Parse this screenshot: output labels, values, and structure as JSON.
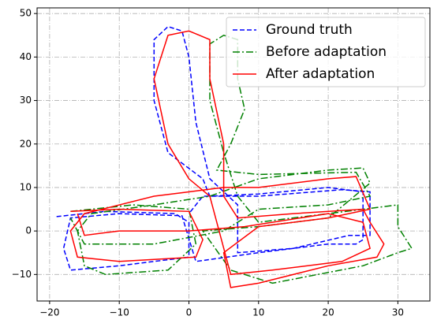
{
  "chart_data": {
    "type": "line",
    "xlim": [
      -21.8,
      34.6
    ],
    "ylim": [
      -16.1,
      51.3
    ],
    "xticks": [
      {
        "value": -20,
        "label": "−20"
      },
      {
        "value": -10,
        "label": "−10"
      },
      0,
      10,
      20,
      30
    ],
    "yticks": [
      {
        "value": -10,
        "label": "−10"
      },
      0,
      10,
      20,
      30,
      40,
      50
    ],
    "grid": true,
    "legend": "upper right",
    "series": [
      {
        "name": "Ground truth",
        "color": "#0000ff",
        "linestyle": "dashed",
        "x": [
          -19,
          -12,
          -2,
          0,
          0,
          -10,
          -17,
          -18,
          -17,
          -10,
          -1,
          1,
          10,
          20,
          24,
          25,
          25,
          20,
          10,
          3,
          2,
          -3,
          -5,
          -5,
          -3,
          -1,
          0,
          1,
          3,
          7,
          7,
          15,
          23,
          26,
          26,
          22,
          10,
          2,
          0
        ],
        "values": [
          3.3,
          4.5,
          4,
          2,
          -6,
          -8,
          -9,
          -4,
          3,
          4,
          3.5,
          -7,
          -5,
          -3,
          -3,
          -2,
          9,
          10,
          8.5,
          8,
          12,
          18,
          30,
          44,
          47,
          46,
          40,
          25,
          12,
          6,
          -5,
          -4,
          -1,
          -1,
          9,
          9.5,
          8,
          8,
          4
        ]
      },
      {
        "name": "Before adaptation",
        "color": "#008000",
        "linestyle": "dashdot",
        "x": [
          -17,
          -8,
          0,
          1,
          -3,
          -12,
          -15,
          -16,
          -14,
          -5,
          3,
          10,
          20,
          25,
          26,
          20,
          10,
          2,
          6,
          12,
          25,
          30,
          32,
          30,
          30,
          20,
          10,
          7,
          5,
          3,
          3,
          5,
          7,
          7,
          8,
          6,
          4,
          10,
          24,
          26,
          20,
          10,
          5,
          -5,
          -15,
          -17
        ],
        "values": [
          4.5,
          6,
          5,
          -3,
          -9,
          -10,
          -8,
          0,
          4,
          6,
          8,
          12,
          14,
          14.5,
          11,
          3,
          1,
          0,
          -9,
          -12,
          -8,
          -5,
          -4,
          1,
          6,
          4,
          2,
          8,
          18,
          30,
          43,
          45,
          44,
          35,
          28,
          20,
          14,
          13,
          13.5,
          8,
          6,
          5,
          0,
          -3,
          -3,
          3
        ]
      },
      {
        "name": "After adaptation",
        "color": "#ff0000",
        "linestyle": "solid",
        "x": [
          -17,
          -10,
          0,
          2,
          1,
          -10,
          -16,
          -17,
          -15,
          -5,
          0,
          5,
          10,
          20,
          24,
          26,
          20,
          10,
          5,
          6,
          10,
          20,
          27,
          28,
          26,
          25,
          15,
          7,
          5,
          5,
          3,
          3,
          0,
          -3,
          -5,
          -3,
          0,
          3,
          6,
          12,
          22,
          26,
          25,
          20,
          8,
          0,
          -10,
          -15,
          -16
        ],
        "values": [
          4.5,
          5,
          4.5,
          -2,
          -6,
          -7,
          -6,
          0,
          4,
          8,
          9,
          10,
          10,
          12,
          12.5,
          5,
          3,
          1,
          -5,
          -13,
          -12,
          -8,
          -6,
          -3,
          2,
          5,
          4,
          3,
          8,
          20,
          35,
          44,
          46,
          45,
          35,
          20,
          12,
          8,
          -10,
          -9,
          -7,
          -4,
          2,
          4,
          1,
          0,
          0,
          -1,
          4
        ]
      }
    ]
  }
}
